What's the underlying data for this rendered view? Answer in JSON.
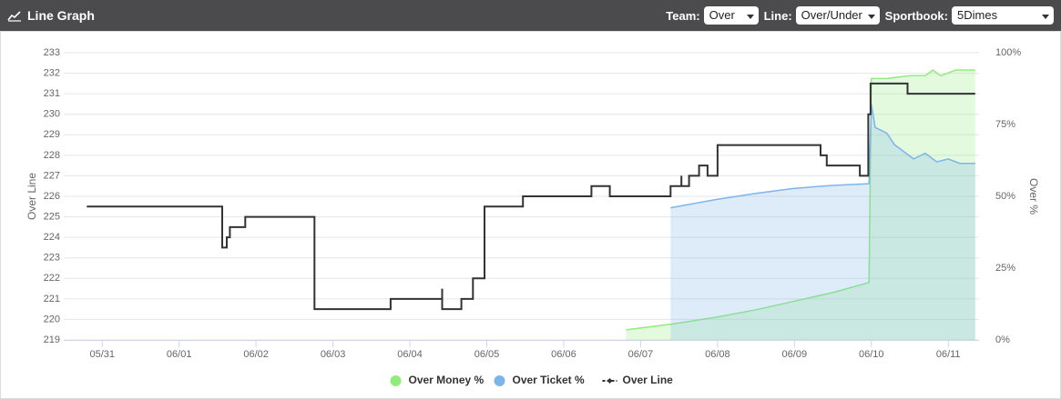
{
  "header": {
    "title": "Line Graph",
    "controls": [
      {
        "label": "Team:",
        "value": "Over"
      },
      {
        "label": "Line:",
        "value": "Over/Under"
      },
      {
        "label": "Sportbook:",
        "value": "5Dimes"
      }
    ]
  },
  "chart_data": {
    "type": "line",
    "xlim": [
      -0.5,
      11.4
    ],
    "xticks": [
      {
        "value": 0,
        "label": "05/31"
      },
      {
        "value": 1,
        "label": "06/01"
      },
      {
        "value": 2,
        "label": "06/02"
      },
      {
        "value": 3,
        "label": "06/03"
      },
      {
        "value": 4,
        "label": "06/04"
      },
      {
        "value": 5,
        "label": "06/05"
      },
      {
        "value": 6,
        "label": "06/06"
      },
      {
        "value": 7,
        "label": "06/07"
      },
      {
        "value": 8,
        "label": "06/08"
      },
      {
        "value": 9,
        "label": "06/09"
      },
      {
        "value": 10,
        "label": "06/10"
      },
      {
        "value": 11,
        "label": "06/11"
      }
    ],
    "ylabel": "Over Line",
    "ylim": [
      219,
      233
    ],
    "yticks": [
      219,
      220,
      221,
      222,
      223,
      224,
      225,
      226,
      227,
      228,
      229,
      230,
      231,
      232,
      233
    ],
    "y2label": "Over %",
    "y2lim": [
      0,
      100
    ],
    "y2ticks": [
      {
        "value": 0,
        "label": "0%"
      },
      {
        "value": 25,
        "label": "25%"
      },
      {
        "value": 50,
        "label": "50%"
      },
      {
        "value": 75,
        "label": "75%"
      },
      {
        "value": 100,
        "label": "100%"
      }
    ],
    "grid": true,
    "legend": "bottom",
    "series": [
      {
        "name": "Over Money %",
        "color": "#90ed7d",
        "axis": "y2",
        "area": true,
        "x": [
          6.81,
          7.4,
          8.0,
          8.5,
          9.0,
          9.5,
          9.97,
          10.0,
          10.2,
          10.5,
          10.7,
          10.8,
          10.9,
          11.1,
          11.35
        ],
        "values": [
          3.5,
          5.5,
          8,
          10.5,
          13.5,
          16.5,
          20,
          91,
          91,
          92,
          92,
          94,
          92,
          94,
          94
        ]
      },
      {
        "name": "Over Ticket %",
        "color": "#7cb5ec",
        "axis": "y2",
        "area": true,
        "x": [
          7.39,
          8.0,
          8.5,
          9.0,
          9.5,
          9.97,
          10.0,
          10.05,
          10.2,
          10.3,
          10.45,
          10.55,
          10.7,
          10.85,
          11.0,
          11.15,
          11.35
        ],
        "values": [
          46,
          49,
          51,
          52.8,
          53.8,
          54.4,
          82,
          74,
          72,
          68,
          65,
          63,
          65,
          62,
          63,
          61.5,
          61.5
        ]
      },
      {
        "name": "Over Line",
        "color": "#333333",
        "axis": "y",
        "x": [
          -0.2,
          1.56,
          1.56,
          1.62,
          1.62,
          1.66,
          1.66,
          1.86,
          1.86,
          2.76,
          2.76,
          3.75,
          3.75,
          4.42,
          4.42,
          4.42,
          4.67,
          4.67,
          4.82,
          4.82,
          4.97,
          4.97,
          5.47,
          5.47,
          6.36,
          6.36,
          6.6,
          6.6,
          7.39,
          7.39,
          7.53,
          7.53,
          7.53,
          7.63,
          7.63,
          7.76,
          7.76,
          7.87,
          7.87,
          8.0,
          8.0,
          9.34,
          9.34,
          9.42,
          9.42,
          9.85,
          9.85,
          9.96,
          9.96,
          9.99,
          9.99,
          10.47,
          10.47,
          11.35
        ],
        "values": [
          225.5,
          225.5,
          223.5,
          223.5,
          224,
          224,
          224.5,
          224.5,
          225,
          225,
          220.5,
          220.5,
          221,
          221,
          221.5,
          220.5,
          220.5,
          221,
          221,
          222,
          222,
          225.5,
          225.5,
          226,
          226,
          226.5,
          226.5,
          226,
          226,
          226.5,
          226.5,
          227,
          226.5,
          226.5,
          227,
          227,
          227.5,
          227.5,
          227,
          227,
          228.5,
          228.5,
          228,
          228,
          227.5,
          227.5,
          227,
          227,
          230,
          230,
          231.5,
          231.5,
          231,
          231
        ]
      }
    ]
  }
}
